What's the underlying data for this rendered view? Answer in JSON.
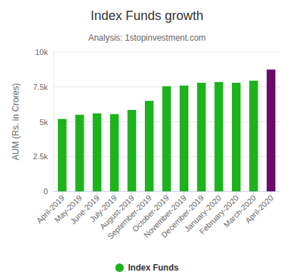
{
  "chart_data": {
    "type": "bar",
    "title": "Index Funds growth",
    "subtitle": "Analysis: 1stopinvestment.com",
    "y_label": "AUM (Rs. in Crores)",
    "categories": [
      "April-2019",
      "May-2019",
      "June-2019",
      "July-2019",
      "August-2019",
      "September-2019",
      "October-2019",
      "November-2019",
      "December-2019",
      "January-2020",
      "February-2020",
      "March-2020",
      "April-2020"
    ],
    "series": [
      {
        "name": "Index Funds",
        "color": "#1db31d",
        "colors": [
          "#1db31d",
          "#1db31d",
          "#1db31d",
          "#1db31d",
          "#1db31d",
          "#1db31d",
          "#1db31d",
          "#1db31d",
          "#1db31d",
          "#1db31d",
          "#1db31d",
          "#1db31d",
          "#6b0a6b"
        ],
        "values": [
          5200,
          5500,
          5600,
          5550,
          5850,
          6500,
          7550,
          7600,
          7800,
          7850,
          7800,
          7950,
          8750
        ]
      }
    ],
    "ylim": [
      0,
      10000
    ],
    "yticks": [
      0,
      {
        "value": 2500,
        "label": "2.5k"
      },
      {
        "value": 5000,
        "label": "5k"
      },
      {
        "value": 7500,
        "label": "7.5k"
      },
      {
        "value": 10000,
        "label": "10k"
      }
    ],
    "grid": true,
    "legend": "bottom"
  }
}
